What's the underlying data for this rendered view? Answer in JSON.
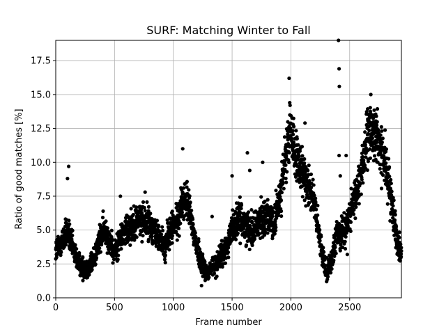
{
  "chart_data": {
    "type": "scatter",
    "title": "SURF: Matching Winter to Fall",
    "xlabel": "Frame number",
    "ylabel": "Ratio of good matches [%]",
    "xlim": [
      0,
      2940
    ],
    "ylim": [
      0,
      19
    ],
    "x_ticks": [
      "0",
      "500",
      "1000",
      "1500",
      "2000",
      "2500"
    ],
    "x_tick_values": [
      0,
      500,
      1000,
      1500,
      2000,
      2500
    ],
    "y_ticks": [
      "0.0",
      "2.5",
      "5.0",
      "7.5",
      "10.0",
      "12.5",
      "15.0",
      "17.5"
    ],
    "y_tick_values": [
      0,
      2.5,
      5,
      7.5,
      10,
      12.5,
      15,
      17.5
    ],
    "grid": true,
    "marker_color": "#000000",
    "trend": [
      [
        0,
        3.5
      ],
      [
        60,
        4.2
      ],
      [
        100,
        5.0
      ],
      [
        130,
        4.0
      ],
      [
        170,
        3.0
      ],
      [
        220,
        2.3
      ],
      [
        280,
        2.2
      ],
      [
        330,
        3.0
      ],
      [
        380,
        4.5
      ],
      [
        430,
        5.0
      ],
      [
        470,
        3.8
      ],
      [
        500,
        3.2
      ],
      [
        550,
        4.5
      ],
      [
        620,
        5.2
      ],
      [
        700,
        5.8
      ],
      [
        780,
        5.6
      ],
      [
        830,
        5.0
      ],
      [
        880,
        4.4
      ],
      [
        930,
        3.8
      ],
      [
        980,
        5.2
      ],
      [
        1030,
        5.5
      ],
      [
        1080,
        7.2
      ],
      [
        1130,
        6.8
      ],
      [
        1180,
        4.5
      ],
      [
        1230,
        2.8
      ],
      [
        1290,
        1.8
      ],
      [
        1350,
        2.4
      ],
      [
        1400,
        3.0
      ],
      [
        1450,
        3.6
      ],
      [
        1500,
        5.2
      ],
      [
        1560,
        5.8
      ],
      [
        1620,
        5.3
      ],
      [
        1680,
        5.0
      ],
      [
        1740,
        5.8
      ],
      [
        1800,
        6.2
      ],
      [
        1850,
        5.2
      ],
      [
        1900,
        7.2
      ],
      [
        1950,
        10.0
      ],
      [
        2000,
        12.5
      ],
      [
        2050,
        10.0
      ],
      [
        2100,
        9.0
      ],
      [
        2150,
        8.5
      ],
      [
        2200,
        6.8
      ],
      [
        2250,
        4.0
      ],
      [
        2300,
        2.0
      ],
      [
        2340,
        2.5
      ],
      [
        2390,
        4.5
      ],
      [
        2430,
        4.8
      ],
      [
        2480,
        5.5
      ],
      [
        2540,
        7.0
      ],
      [
        2590,
        9.0
      ],
      [
        2630,
        11.0
      ],
      [
        2680,
        12.5
      ],
      [
        2730,
        11.8
      ],
      [
        2800,
        10.0
      ],
      [
        2860,
        7.0
      ],
      [
        2900,
        4.5
      ],
      [
        2940,
        3.2
      ]
    ],
    "outliers": [
      [
        110,
        9.7
      ],
      [
        100,
        8.8
      ],
      [
        2405,
        19.0
      ],
      [
        2410,
        16.9
      ],
      [
        2412,
        15.6
      ],
      [
        1985,
        16.2
      ],
      [
        2680,
        15.0
      ],
      [
        1080,
        11.0
      ],
      [
        2410,
        10.5
      ],
      [
        2470,
        10.5
      ],
      [
        1630,
        10.7
      ],
      [
        1760,
        10.0
      ],
      [
        2420,
        9.0
      ],
      [
        1650,
        9.4
      ],
      [
        2120,
        12.9
      ],
      [
        1990,
        14.4
      ],
      [
        1500,
        9.0
      ],
      [
        2480,
        3.2
      ],
      [
        1330,
        6.0
      ],
      [
        1240,
        0.9
      ],
      [
        550,
        7.5
      ],
      [
        760,
        7.8
      ]
    ]
  }
}
